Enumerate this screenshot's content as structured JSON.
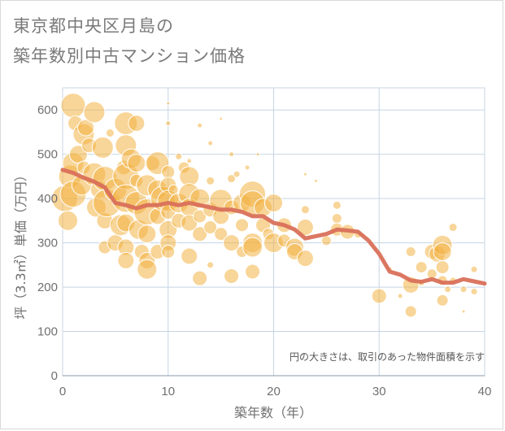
{
  "header": {
    "title_line1": "東京都中央区月島の",
    "title_line2": "築年数別中古マンション価格"
  },
  "colors": {
    "bubble": "#f3b243",
    "line": "#d9705a",
    "grid": "#c5d5e3",
    "axis": "#8a9aaa"
  },
  "chart_data": {
    "type": "scatter",
    "xlabel": "築年数（年）",
    "ylabel": "坪（3.3㎡）単価（万円）",
    "xlim": [
      0,
      40
    ],
    "ylim": [
      0,
      650
    ],
    "xticks": [
      "0",
      "10",
      "20",
      "30",
      "40"
    ],
    "yticks": [
      "0",
      "100",
      "200",
      "300",
      "400",
      "500",
      "600"
    ],
    "grid": true,
    "note": "円の大きさは、取引のあった物件面積を示す",
    "bubbles": [
      {
        "x": 0.2,
        "y": 400,
        "r": 16
      },
      {
        "x": 0.5,
        "y": 350,
        "r": 12
      },
      {
        "x": 0.7,
        "y": 450,
        "r": 14
      },
      {
        "x": 1,
        "y": 610,
        "r": 15
      },
      {
        "x": 1,
        "y": 480,
        "r": 13
      },
      {
        "x": 1,
        "y": 410,
        "r": 16
      },
      {
        "x": 1.2,
        "y": 570,
        "r": 9
      },
      {
        "x": 1.5,
        "y": 500,
        "r": 11
      },
      {
        "x": 1.8,
        "y": 430,
        "r": 12
      },
      {
        "x": 2,
        "y": 545,
        "r": 13
      },
      {
        "x": 2,
        "y": 470,
        "r": 8
      },
      {
        "x": 2.2,
        "y": 560,
        "r": 10
      },
      {
        "x": 2.5,
        "y": 520,
        "r": 9
      },
      {
        "x": 3,
        "y": 595,
        "r": 13
      },
      {
        "x": 3,
        "y": 455,
        "r": 14
      },
      {
        "x": 3.2,
        "y": 380,
        "r": 12
      },
      {
        "x": 3.5,
        "y": 420,
        "r": 11
      },
      {
        "x": 3.8,
        "y": 515,
        "r": 13
      },
      {
        "x": 4,
        "y": 445,
        "r": 15
      },
      {
        "x": 4,
        "y": 350,
        "r": 10
      },
      {
        "x": 4,
        "y": 290,
        "r": 8
      },
      {
        "x": 4.2,
        "y": 390,
        "r": 17
      },
      {
        "x": 4.5,
        "y": 548,
        "r": 5
      },
      {
        "x": 5,
        "y": 420,
        "r": 14
      },
      {
        "x": 5,
        "y": 300,
        "r": 10
      },
      {
        "x": 5.5,
        "y": 340,
        "r": 13
      },
      {
        "x": 5.8,
        "y": 470,
        "r": 9
      },
      {
        "x": 6,
        "y": 570,
        "r": 14
      },
      {
        "x": 6,
        "y": 520,
        "r": 13
      },
      {
        "x": 6,
        "y": 450,
        "r": 16
      },
      {
        "x": 6,
        "y": 400,
        "r": 17
      },
      {
        "x": 6,
        "y": 345,
        "r": 11
      },
      {
        "x": 6,
        "y": 290,
        "r": 10
      },
      {
        "x": 6,
        "y": 260,
        "r": 10
      },
      {
        "x": 6.5,
        "y": 490,
        "r": 12
      },
      {
        "x": 7,
        "y": 570,
        "r": 10
      },
      {
        "x": 7,
        "y": 480,
        "r": 11
      },
      {
        "x": 7,
        "y": 440,
        "r": 8
      },
      {
        "x": 7,
        "y": 390,
        "r": 14
      },
      {
        "x": 7.2,
        "y": 330,
        "r": 12
      },
      {
        "x": 7.5,
        "y": 280,
        "r": 9
      },
      {
        "x": 8,
        "y": 430,
        "r": 13
      },
      {
        "x": 8,
        "y": 370,
        "r": 16
      },
      {
        "x": 8,
        "y": 320,
        "r": 11
      },
      {
        "x": 8,
        "y": 260,
        "r": 10
      },
      {
        "x": 8,
        "y": 240,
        "r": 12
      },
      {
        "x": 8.5,
        "y": 480,
        "r": 9
      },
      {
        "x": 9,
        "y": 480,
        "r": 14
      },
      {
        "x": 9,
        "y": 420,
        "r": 12
      },
      {
        "x": 9,
        "y": 360,
        "r": 10
      },
      {
        "x": 9,
        "y": 280,
        "r": 9
      },
      {
        "x": 9.5,
        "y": 400,
        "r": 15
      },
      {
        "x": 10,
        "y": 615,
        "r": 2
      },
      {
        "x": 10,
        "y": 570,
        "r": 3
      },
      {
        "x": 10,
        "y": 460,
        "r": 8
      },
      {
        "x": 10,
        "y": 430,
        "r": 10
      },
      {
        "x": 10,
        "y": 395,
        "r": 13
      },
      {
        "x": 10,
        "y": 370,
        "r": 9
      },
      {
        "x": 10,
        "y": 330,
        "r": 11
      },
      {
        "x": 10,
        "y": 300,
        "r": 10
      },
      {
        "x": 10,
        "y": 280,
        "r": 8
      },
      {
        "x": 10.5,
        "y": 420,
        "r": 6
      },
      {
        "x": 11,
        "y": 495,
        "r": 4
      },
      {
        "x": 11,
        "y": 390,
        "r": 12
      },
      {
        "x": 11,
        "y": 350,
        "r": 9
      },
      {
        "x": 11.5,
        "y": 470,
        "r": 7
      },
      {
        "x": 12,
        "y": 450,
        "r": 12
      },
      {
        "x": 12,
        "y": 410,
        "r": 13
      },
      {
        "x": 12,
        "y": 380,
        "r": 11
      },
      {
        "x": 12,
        "y": 345,
        "r": 10
      },
      {
        "x": 12,
        "y": 270,
        "r": 10
      },
      {
        "x": 12,
        "y": 485,
        "r": 3
      },
      {
        "x": 13,
        "y": 565,
        "r": 3
      },
      {
        "x": 13,
        "y": 400,
        "r": 12
      },
      {
        "x": 13,
        "y": 360,
        "r": 8
      },
      {
        "x": 13,
        "y": 320,
        "r": 9
      },
      {
        "x": 13,
        "y": 220,
        "r": 9
      },
      {
        "x": 14,
        "y": 525,
        "r": 3
      },
      {
        "x": 14,
        "y": 440,
        "r": 5
      },
      {
        "x": 14,
        "y": 375,
        "r": 9
      },
      {
        "x": 14,
        "y": 335,
        "r": 8
      },
      {
        "x": 14,
        "y": 250,
        "r": 4
      },
      {
        "x": 15,
        "y": 395,
        "r": 14
      },
      {
        "x": 15,
        "y": 360,
        "r": 10
      },
      {
        "x": 15,
        "y": 320,
        "r": 8
      },
      {
        "x": 15,
        "y": 580,
        "r": 2
      },
      {
        "x": 16,
        "y": 500,
        "r": 3
      },
      {
        "x": 16,
        "y": 445,
        "r": 5
      },
      {
        "x": 16,
        "y": 380,
        "r": 9
      },
      {
        "x": 16,
        "y": 300,
        "r": 10
      },
      {
        "x": 16,
        "y": 225,
        "r": 9
      },
      {
        "x": 16.5,
        "y": 455,
        "r": 4
      },
      {
        "x": 17,
        "y": 390,
        "r": 11
      },
      {
        "x": 17,
        "y": 340,
        "r": 8
      },
      {
        "x": 17,
        "y": 280,
        "r": 7
      },
      {
        "x": 17.5,
        "y": 470,
        "r": 3
      },
      {
        "x": 18,
        "y": 410,
        "r": 16
      },
      {
        "x": 18,
        "y": 390,
        "r": 15
      },
      {
        "x": 18,
        "y": 300,
        "r": 12
      },
      {
        "x": 18,
        "y": 290,
        "r": 12
      },
      {
        "x": 18,
        "y": 235,
        "r": 9
      },
      {
        "x": 18.5,
        "y": 500,
        "r": 2
      },
      {
        "x": 19,
        "y": 380,
        "r": 11
      },
      {
        "x": 19,
        "y": 340,
        "r": 9
      },
      {
        "x": 19.5,
        "y": 320,
        "r": 7
      },
      {
        "x": 20,
        "y": 390,
        "r": 11
      },
      {
        "x": 20,
        "y": 300,
        "r": 12
      },
      {
        "x": 21,
        "y": 340,
        "r": 9
      },
      {
        "x": 21,
        "y": 305,
        "r": 8
      },
      {
        "x": 22,
        "y": 290,
        "r": 11
      },
      {
        "x": 22,
        "y": 280,
        "r": 10
      },
      {
        "x": 23,
        "y": 335,
        "r": 10
      },
      {
        "x": 23,
        "y": 265,
        "r": 10
      },
      {
        "x": 23,
        "y": 375,
        "r": 5
      },
      {
        "x": 23,
        "y": 455,
        "r": 2
      },
      {
        "x": 24,
        "y": 440,
        "r": 2
      },
      {
        "x": 25,
        "y": 305,
        "r": 6
      },
      {
        "x": 26,
        "y": 385,
        "r": 5
      },
      {
        "x": 26,
        "y": 355,
        "r": 6
      },
      {
        "x": 26,
        "y": 330,
        "r": 8
      },
      {
        "x": 27,
        "y": 325,
        "r": 9
      },
      {
        "x": 28,
        "y": 320,
        "r": 5
      },
      {
        "x": 30,
        "y": 180,
        "r": 9
      },
      {
        "x": 31,
        "y": 240,
        "r": 3
      },
      {
        "x": 32,
        "y": 180,
        "r": 3
      },
      {
        "x": 33,
        "y": 280,
        "r": 6
      },
      {
        "x": 33,
        "y": 205,
        "r": 10
      },
      {
        "x": 33,
        "y": 145,
        "r": 7
      },
      {
        "x": 34,
        "y": 245,
        "r": 7
      },
      {
        "x": 34,
        "y": 210,
        "r": 4
      },
      {
        "x": 35,
        "y": 280,
        "r": 9
      },
      {
        "x": 35,
        "y": 230,
        "r": 6
      },
      {
        "x": 35.5,
        "y": 275,
        "r": 10
      },
      {
        "x": 36,
        "y": 295,
        "r": 12
      },
      {
        "x": 36,
        "y": 280,
        "r": 11
      },
      {
        "x": 36,
        "y": 245,
        "r": 8
      },
      {
        "x": 36,
        "y": 215,
        "r": 6
      },
      {
        "x": 36,
        "y": 170,
        "r": 7
      },
      {
        "x": 36.5,
        "y": 195,
        "r": 4
      },
      {
        "x": 37,
        "y": 335,
        "r": 5
      },
      {
        "x": 37,
        "y": 215,
        "r": 4
      },
      {
        "x": 38,
        "y": 195,
        "r": 4
      },
      {
        "x": 38,
        "y": 145,
        "r": 2
      },
      {
        "x": 39,
        "y": 240,
        "r": 4
      },
      {
        "x": 39,
        "y": 190,
        "r": 4
      }
    ],
    "trend": [
      {
        "x": 0,
        "y": 465
      },
      {
        "x": 1,
        "y": 458
      },
      {
        "x": 2,
        "y": 447
      },
      {
        "x": 3,
        "y": 438
      },
      {
        "x": 4,
        "y": 425
      },
      {
        "x": 5,
        "y": 390
      },
      {
        "x": 6,
        "y": 385
      },
      {
        "x": 7,
        "y": 378
      },
      {
        "x": 8,
        "y": 385
      },
      {
        "x": 9,
        "y": 385
      },
      {
        "x": 10,
        "y": 390
      },
      {
        "x": 11,
        "y": 385
      },
      {
        "x": 12,
        "y": 390
      },
      {
        "x": 13,
        "y": 385
      },
      {
        "x": 14,
        "y": 380
      },
      {
        "x": 15,
        "y": 375
      },
      {
        "x": 16,
        "y": 375
      },
      {
        "x": 17,
        "y": 370
      },
      {
        "x": 18,
        "y": 360
      },
      {
        "x": 19,
        "y": 360
      },
      {
        "x": 20,
        "y": 345
      },
      {
        "x": 21,
        "y": 340
      },
      {
        "x": 22,
        "y": 330
      },
      {
        "x": 23,
        "y": 310
      },
      {
        "x": 24,
        "y": 315
      },
      {
        "x": 25,
        "y": 320
      },
      {
        "x": 26,
        "y": 330
      },
      {
        "x": 27,
        "y": 328
      },
      {
        "x": 28,
        "y": 325
      },
      {
        "x": 29,
        "y": 305
      },
      {
        "x": 30,
        "y": 275
      },
      {
        "x": 31,
        "y": 235
      },
      {
        "x": 32,
        "y": 228
      },
      {
        "x": 33,
        "y": 215
      },
      {
        "x": 34,
        "y": 212
      },
      {
        "x": 35,
        "y": 218
      },
      {
        "x": 36,
        "y": 210
      },
      {
        "x": 37,
        "y": 210
      },
      {
        "x": 38,
        "y": 218
      },
      {
        "x": 39,
        "y": 213
      },
      {
        "x": 40,
        "y": 208
      }
    ]
  }
}
